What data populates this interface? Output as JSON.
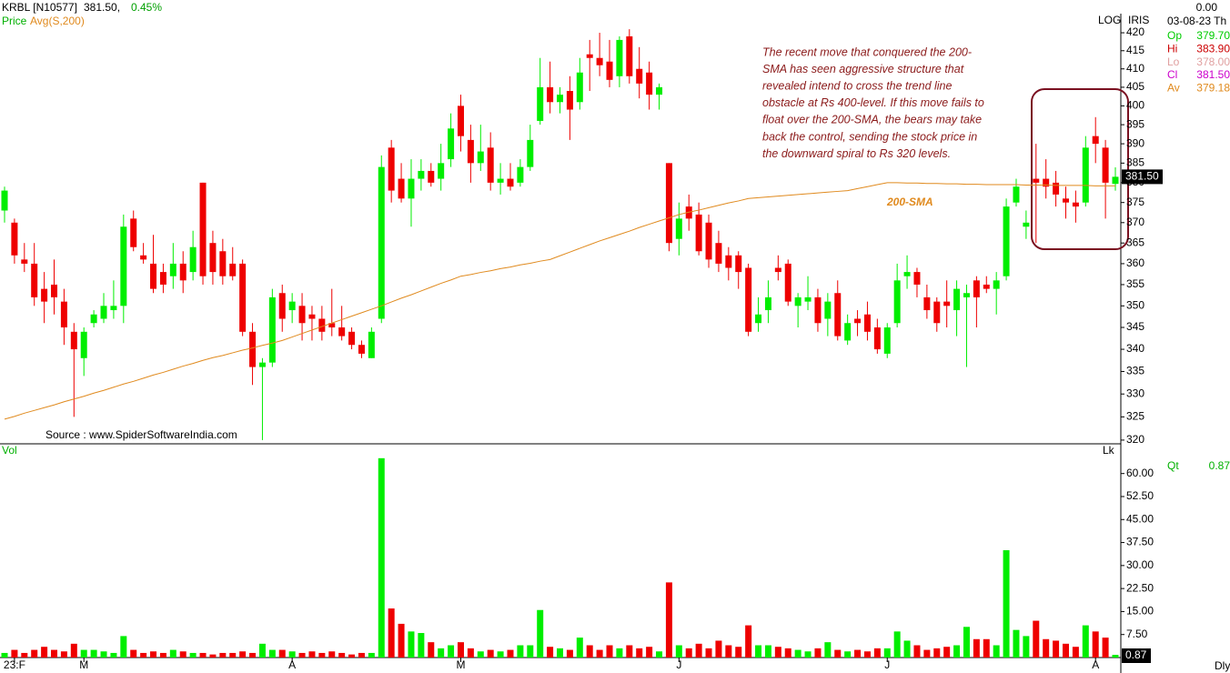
{
  "header": {
    "symbol": "KRBL [N10577]",
    "price": "381.50,",
    "change": "0.45%"
  },
  "panel": {
    "change": "0.00",
    "date": "03-08-23 Th",
    "rows": [
      {
        "label": "Op",
        "value": "379.70",
        "color": "#00cc00"
      },
      {
        "label": "Hi",
        "value": "383.90",
        "color": "#cc0000"
      },
      {
        "label": "Lo",
        "value": "378.00",
        "color": "#e0a0a0"
      },
      {
        "label": "Cl",
        "value": "381.50",
        "color": "#cc00cc"
      },
      {
        "label": "Av",
        "value": "379.18",
        "color": "#e08a1e"
      }
    ],
    "qt_label": "Qt",
    "qt_value": "0.87"
  },
  "toolbar": {
    "iris": "IRIS",
    "period": "Dly"
  },
  "chart_data": [
    {
      "type": "candlestick",
      "scale_label": "LOG",
      "log": true,
      "categories": [
        null,
        "23:F",
        null,
        null,
        null,
        null,
        null,
        null,
        "M",
        null,
        null,
        null,
        null,
        null,
        null,
        null,
        null,
        null,
        null,
        null,
        null,
        null,
        null,
        null,
        null,
        null,
        null,
        null,
        null,
        "A",
        null,
        null,
        null,
        null,
        null,
        null,
        null,
        null,
        null,
        null,
        null,
        null,
        null,
        null,
        null,
        null,
        "M",
        null,
        null,
        null,
        null,
        null,
        null,
        null,
        null,
        null,
        null,
        null,
        null,
        null,
        null,
        null,
        null,
        null,
        null,
        null,
        null,
        null,
        "J",
        null,
        null,
        null,
        null,
        null,
        null,
        null,
        null,
        null,
        null,
        null,
        null,
        null,
        null,
        null,
        null,
        null,
        null,
        null,
        null,
        "J",
        null,
        null,
        null,
        null,
        null,
        null,
        null,
        null,
        null,
        null,
        null,
        null,
        null,
        null,
        null,
        null,
        null,
        null,
        null,
        null,
        "A",
        null,
        null
      ],
      "series": [
        {
          "name": "Price",
          "up_color": "#00ee00",
          "down_color": "#ee0000",
          "open": [
            373,
            370,
            361,
            360,
            354,
            355,
            351,
            344,
            338,
            346,
            347,
            349,
            350,
            371,
            362,
            360,
            358,
            357,
            360,
            358,
            380,
            365,
            363,
            360,
            360,
            344,
            336,
            337,
            353,
            349,
            350,
            348,
            347,
            346,
            345,
            344,
            341,
            338,
            347,
            389,
            381,
            376,
            381,
            383,
            381,
            386,
            400,
            391,
            385,
            389,
            380,
            381,
            380,
            384,
            396,
            405,
            401,
            404,
            401,
            414,
            413,
            412,
            408,
            419,
            410,
            409,
            403,
            385,
            366,
            374,
            372,
            370,
            365,
            362,
            362,
            359,
            346,
            349,
            359,
            360,
            350,
            351,
            352,
            347,
            353,
            342,
            347,
            348,
            345,
            339,
            346,
            357,
            358,
            352,
            351,
            351,
            349,
            352,
            356,
            355,
            354,
            357,
            375,
            369,
            381,
            381,
            380,
            376,
            375,
            375,
            392,
            389,
            379.7
          ],
          "high": [
            379,
            371,
            365,
            365,
            358,
            361,
            354,
            346,
            345,
            349,
            353,
            356,
            372,
            373,
            365,
            367,
            360,
            365,
            363,
            368,
            380,
            368,
            366,
            364,
            361,
            346,
            338,
            354,
            355,
            353,
            353,
            350,
            350,
            354,
            350,
            345,
            342,
            345,
            387,
            391,
            385,
            386,
            386,
            385,
            390,
            398,
            403,
            395,
            395,
            393,
            385,
            385,
            386,
            395,
            413,
            412,
            405,
            408,
            413,
            418,
            420,
            418,
            419,
            421,
            416,
            412,
            406,
            385,
            375,
            377,
            375,
            372,
            368,
            364,
            363,
            360,
            352,
            356,
            362,
            361,
            353,
            357,
            354,
            353,
            356,
            348,
            349,
            351,
            347,
            346,
            360,
            362,
            359,
            355,
            352,
            356,
            356,
            355,
            357,
            357,
            358,
            376,
            381,
            373,
            390,
            386,
            383,
            379,
            378,
            392,
            397,
            391,
            383.9
          ],
          "low": [
            370,
            360,
            358,
            350,
            346,
            348,
            341,
            325,
            334,
            345,
            346,
            347,
            346,
            363,
            360,
            353,
            353,
            354,
            353,
            356,
            355,
            355,
            355,
            356,
            343,
            332,
            320,
            336,
            344,
            346,
            342,
            342,
            342,
            343,
            342,
            340,
            338,
            338,
            346,
            375,
            375,
            369,
            378,
            379,
            378,
            384,
            388,
            380,
            383,
            378,
            377,
            378,
            379,
            383,
            395,
            398,
            398,
            391,
            399,
            404,
            408,
            405,
            405,
            406,
            402,
            399,
            399,
            363,
            362,
            368,
            362,
            359,
            358,
            356,
            354,
            343,
            344,
            346,
            356,
            350,
            345,
            349,
            344,
            343,
            342,
            341,
            343,
            342,
            339,
            338,
            345,
            354,
            352,
            347,
            344,
            345,
            343,
            336,
            345,
            353,
            348,
            356,
            374,
            366,
            365,
            376,
            374,
            371,
            370,
            374,
            385,
            371,
            378
          ],
          "close": [
            378,
            362,
            360,
            352,
            351,
            352,
            345,
            340,
            344,
            348,
            350,
            350,
            369,
            364,
            361,
            354,
            355,
            360,
            356,
            364,
            357,
            358,
            357,
            357,
            344,
            336,
            337,
            352,
            347,
            351,
            346,
            347,
            344,
            345,
            343,
            341,
            339,
            344,
            384,
            378,
            376,
            381,
            383,
            380,
            385,
            394,
            392,
            385,
            388,
            380,
            381,
            379,
            384,
            391,
            405,
            401,
            403,
            399,
            409,
            413,
            411,
            407,
            418,
            408,
            406,
            403,
            405,
            365,
            371,
            371,
            363,
            361,
            360,
            359,
            358,
            344,
            348,
            352,
            358,
            351,
            352,
            352,
            346,
            351,
            343,
            346,
            346,
            344,
            340,
            345,
            356,
            358,
            355,
            349,
            346,
            350,
            354,
            353,
            352,
            354,
            356,
            374,
            379,
            370,
            380,
            379,
            377,
            375,
            374,
            389,
            390,
            380,
            381.5
          ],
          "last_label": "381.50"
        },
        {
          "name": "Avg(S,200)",
          "color": "#e08a1e",
          "values": [
            324.5,
            325.1,
            325.8,
            326.4,
            327.0,
            327.6,
            328.3,
            328.9,
            329.5,
            330.2,
            330.8,
            331.5,
            332.2,
            332.8,
            333.5,
            334.2,
            334.8,
            335.5,
            336.2,
            336.8,
            337.5,
            338.1,
            338.6,
            339.2,
            339.8,
            340.3,
            340.9,
            341.4,
            342.0,
            342.8,
            343.6,
            344.4,
            345.2,
            346.0,
            346.8,
            347.6,
            348.4,
            349.2,
            350.0,
            350.9,
            351.8,
            352.6,
            353.5,
            354.4,
            355.3,
            356.1,
            357.0,
            357.4,
            357.9,
            358.3,
            358.8,
            359.2,
            359.7,
            360.1,
            360.6,
            361.0,
            361.9,
            362.8,
            363.7,
            364.6,
            365.5,
            366.3,
            367.1,
            367.9,
            368.8,
            369.6,
            370.4,
            371.2,
            372.0,
            372.6,
            373.1,
            373.7,
            374.3,
            374.9,
            375.4,
            376.0,
            376.2,
            376.4,
            376.6,
            376.8,
            377.0,
            377.2,
            377.4,
            377.6,
            377.8,
            378.0,
            378.5,
            379.0,
            379.5,
            380.0,
            380.0,
            379.9,
            379.9,
            379.8,
            379.8,
            379.7,
            379.7,
            379.6,
            379.6,
            379.5,
            379.5,
            379.5,
            379.5,
            379.4,
            379.4,
            379.4,
            379.3,
            379.3,
            379.3,
            379.3,
            379.2,
            379.2,
            379.2
          ]
        }
      ],
      "ylim": [
        319.4,
        425.4
      ],
      "yticks": [
        320,
        325,
        330,
        335,
        340,
        345,
        350,
        355,
        360,
        365,
        370,
        375,
        380,
        385,
        390,
        395,
        400,
        405,
        410,
        415,
        420
      ],
      "annotation_lines": [
        "The recent move that conquered the 200-",
        "SMA has seen aggressive structure that",
        "revealed intend to cross the trend line",
        "obstacle at Rs 400-level. If this move fails to",
        "float over the 200-SMA, the bears may take",
        "back the control, sending the stock price in",
        "the downward spiral to Rs 320 levels."
      ],
      "sma_label": "200-SMA",
      "source": "Source : www.SpiderSoftwareIndia.com"
    },
    {
      "type": "bar",
      "title": "Vol",
      "unit_label": "Lk",
      "values": [
        1.5,
        2.5,
        1.5,
        2.5,
        3.5,
        2.5,
        2.0,
        4.5,
        2.5,
        2.5,
        2.0,
        1.5,
        7.0,
        2.5,
        1.5,
        2.0,
        1.5,
        2.5,
        2.0,
        1.5,
        1.5,
        1.0,
        1.5,
        1.5,
        2.0,
        1.5,
        4.5,
        2.5,
        2.5,
        2.0,
        1.5,
        2.0,
        1.5,
        2.0,
        1.5,
        1.0,
        1.5,
        1.5,
        65.0,
        16.0,
        11.0,
        8.5,
        8.0,
        5.0,
        3.0,
        4.0,
        5.0,
        3.0,
        2.0,
        2.5,
        2.0,
        2.5,
        4.0,
        4.0,
        15.5,
        3.5,
        3.0,
        2.5,
        6.5,
        4.0,
        2.5,
        4.0,
        3.0,
        4.0,
        3.0,
        3.5,
        2.0,
        24.5,
        4.0,
        3.0,
        4.5,
        3.0,
        5.5,
        4.0,
        3.5,
        10.5,
        4.0,
        4.0,
        3.5,
        3.0,
        2.5,
        2.0,
        3.0,
        5.0,
        2.5,
        2.0,
        2.5,
        2.0,
        3.0,
        3.0,
        8.5,
        5.5,
        4.0,
        2.5,
        3.0,
        3.5,
        4.0,
        10.0,
        6.0,
        6.0,
        4.0,
        35.0,
        9.0,
        7.0,
        12.0,
        6.0,
        5.5,
        4.5,
        3.5,
        10.5,
        8.5,
        6.5,
        0.87
      ],
      "ylim": [
        0,
        69.1
      ],
      "yticks": [
        {
          "value": 7.5,
          "label": "7.50"
        },
        {
          "value": 15,
          "label": "15.00"
        },
        {
          "value": 22.5,
          "label": "22.50"
        },
        {
          "value": 30,
          "label": "30.00"
        },
        {
          "value": 37.5,
          "label": "37.50"
        },
        {
          "value": 45,
          "label": "45.00"
        },
        {
          "value": 52.5,
          "label": "52.50"
        },
        {
          "value": 60,
          "label": "60.00"
        }
      ]
    }
  ]
}
